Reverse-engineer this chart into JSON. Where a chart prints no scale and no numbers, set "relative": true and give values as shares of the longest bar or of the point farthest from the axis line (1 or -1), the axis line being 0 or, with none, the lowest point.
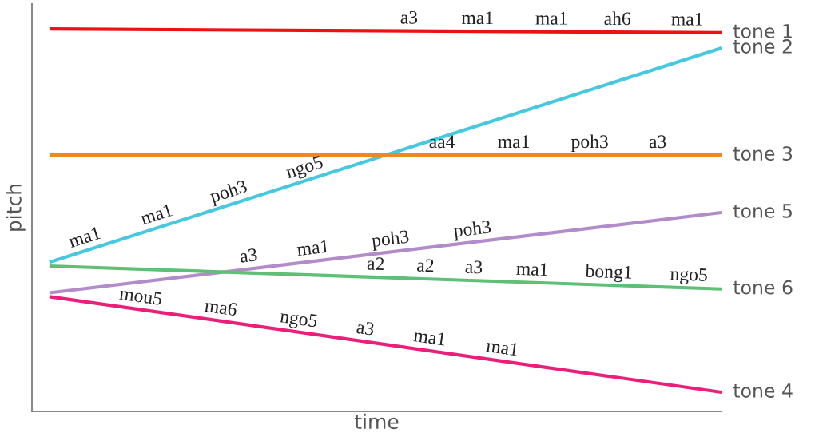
{
  "chart_data": {
    "type": "line",
    "relative": true,
    "xlabel": "time",
    "ylabel": "pitch",
    "categories": [
      null,
      null
    ],
    "series": [
      {
        "name": "tone 1",
        "color": "#ee1111",
        "values": [
          1,
          0.99
        ]
      },
      {
        "name": "tone 2",
        "color": "#45c8e0",
        "values": [
          0.39,
          0.95
        ]
      },
      {
        "name": "tone 3",
        "color": "#ee8822",
        "values": [
          0.67,
          0.67
        ]
      },
      {
        "name": "tone 5",
        "color": "#b28cc8",
        "values": [
          0.31,
          0.52
        ]
      },
      {
        "name": "tone 6",
        "color": "#5fbf77",
        "values": [
          0.38,
          0.32
        ]
      },
      {
        "name": "tone 4",
        "color": "#ea1f7a",
        "values": [
          0.3,
          0.05
        ]
      }
    ],
    "annotations": [
      "a3",
      "ma1",
      "ma1",
      "ah6",
      "ma1",
      "ma1",
      "ma1",
      "poh3",
      "ngo5",
      "aa4",
      "ma1",
      "poh3",
      "a3",
      "a3",
      "ma1",
      "poh3",
      "poh3",
      "a2",
      "a2",
      "a3",
      "ma1",
      "bong1",
      "ngo5",
      "mou5",
      "ma6",
      "ngo5",
      "a3",
      "ma1",
      "ma1"
    ]
  }
}
